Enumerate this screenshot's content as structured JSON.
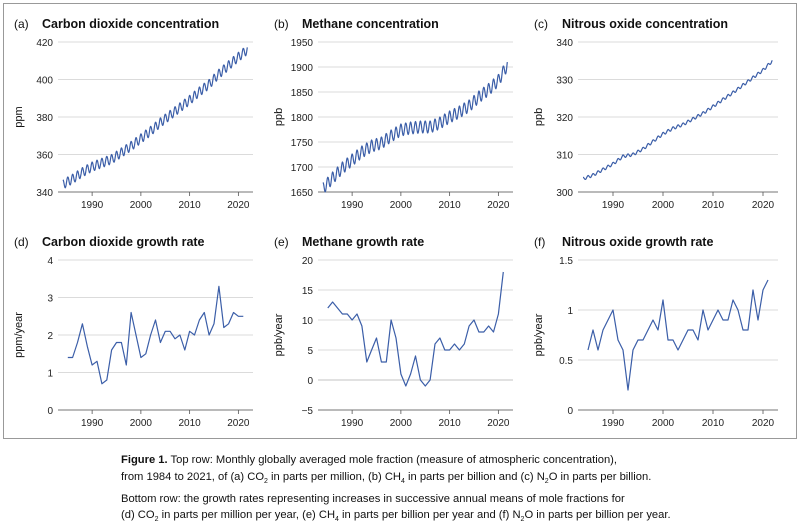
{
  "chart_data": [
    {
      "type": "line",
      "panel_tag": "(a)",
      "title": "Carbon dioxide concentration",
      "ylabel": "ppm",
      "xlim": [
        1983,
        2023
      ],
      "ylim": [
        340,
        420
      ],
      "yticks": [
        340,
        360,
        380,
        400,
        420
      ],
      "xticks": [
        1990,
        2000,
        2010,
        2020
      ],
      "color": "#3b5ea8",
      "x": [
        1984,
        1986,
        1988,
        1990,
        1992,
        1994,
        1996,
        1998,
        2000,
        2002,
        2004,
        2006,
        2008,
        2010,
        2012,
        2014,
        2016,
        2018,
        2020,
        2021.9
      ],
      "y": [
        344.0,
        347.0,
        350.5,
        353.5,
        355.5,
        357.5,
        361.0,
        364.5,
        368.5,
        372.5,
        377.0,
        381.0,
        385.0,
        389.0,
        393.5,
        397.5,
        403.0,
        407.5,
        412.0,
        416.0
      ],
      "seasonal_amplitude": 2.5
    },
    {
      "type": "line",
      "panel_tag": "(b)",
      "title": "Methane concentration",
      "ylabel": "ppb",
      "xlim": [
        1983,
        2023
      ],
      "ylim": [
        1650,
        1950
      ],
      "yticks": [
        1650,
        1700,
        1750,
        1800,
        1850,
        1900,
        1950
      ],
      "xticks": [
        1990,
        2000,
        2010,
        2020
      ],
      "color": "#3b5ea8",
      "x": [
        1984,
        1986,
        1988,
        1990,
        1992,
        1994,
        1996,
        1998,
        2000,
        2002,
        2004,
        2006,
        2008,
        2010,
        2012,
        2014,
        2016,
        2018,
        2020,
        2021.9
      ],
      "y": [
        1657,
        1678,
        1698,
        1714,
        1730,
        1742,
        1748,
        1762,
        1774,
        1778,
        1780,
        1780,
        1788,
        1800,
        1810,
        1822,
        1840,
        1855,
        1873,
        1905
      ],
      "seasonal_amplitude": 12
    },
    {
      "type": "line",
      "panel_tag": "(c)",
      "title": "Nitrous oxide concentration",
      "ylabel": "ppb",
      "xlim": [
        1983,
        2023
      ],
      "ylim": [
        300,
        340
      ],
      "yticks": [
        300,
        310,
        320,
        330,
        340
      ],
      "xticks": [
        1990,
        2000,
        2010,
        2020
      ],
      "color": "#3b5ea8",
      "x": [
        1984,
        1986,
        1988,
        1990,
        1992,
        1994,
        1996,
        1998,
        2000,
        2002,
        2004,
        2006,
        2008,
        2010,
        2012,
        2014,
        2016,
        2018,
        2020,
        2021.9
      ],
      "y": [
        303.5,
        304.5,
        306.0,
        307.5,
        309.5,
        310.0,
        311.5,
        313.5,
        315.5,
        317.0,
        318.0,
        319.5,
        321.0,
        322.8,
        324.7,
        326.5,
        328.5,
        330.5,
        332.5,
        335.0
      ],
      "seasonal_amplitude": 0.4
    },
    {
      "type": "line",
      "panel_tag": "(d)",
      "title": "Carbon dioxide growth rate",
      "ylabel": "ppm/year",
      "xlim": [
        1983,
        2023
      ],
      "ylim": [
        0,
        4
      ],
      "yticks": [
        0,
        1,
        2,
        3,
        4
      ],
      "xticks": [
        1990,
        2000,
        2010,
        2020
      ],
      "color": "#3b5ea8",
      "x": [
        1985,
        1986,
        1987,
        1988,
        1989,
        1990,
        1991,
        1992,
        1993,
        1994,
        1995,
        1996,
        1997,
        1998,
        1999,
        2000,
        2001,
        2002,
        2003,
        2004,
        2005,
        2006,
        2007,
        2008,
        2009,
        2010,
        2011,
        2012,
        2013,
        2014,
        2015,
        2016,
        2017,
        2018,
        2019,
        2020,
        2021
      ],
      "y": [
        1.4,
        1.4,
        1.8,
        2.3,
        1.7,
        1.2,
        1.3,
        0.7,
        0.8,
        1.6,
        1.8,
        1.8,
        1.2,
        2.6,
        2.0,
        1.4,
        1.5,
        2.0,
        2.4,
        1.8,
        2.1,
        2.1,
        1.9,
        2.0,
        1.6,
        2.1,
        2.0,
        2.4,
        2.6,
        2.0,
        2.3,
        3.3,
        2.2,
        2.3,
        2.6,
        2.5,
        2.5
      ]
    },
    {
      "type": "line",
      "panel_tag": "(e)",
      "title": "Methane growth rate",
      "ylabel": "ppb/year",
      "xlim": [
        1983,
        2023
      ],
      "ylim": [
        -5,
        20
      ],
      "yticks": [
        -5,
        0,
        5,
        10,
        15,
        20
      ],
      "xticks": [
        1990,
        2000,
        2010,
        2020
      ],
      "color": "#3b5ea8",
      "x": [
        1985,
        1986,
        1987,
        1988,
        1989,
        1990,
        1991,
        1992,
        1993,
        1994,
        1995,
        1996,
        1997,
        1998,
        1999,
        2000,
        2001,
        2002,
        2003,
        2004,
        2005,
        2006,
        2007,
        2008,
        2009,
        2010,
        2011,
        2012,
        2013,
        2014,
        2015,
        2016,
        2017,
        2018,
        2019,
        2020,
        2021
      ],
      "y": [
        12,
        13,
        12,
        11,
        11,
        10,
        11,
        9,
        3,
        5,
        7,
        3,
        3,
        10,
        7,
        1,
        -1,
        1,
        4,
        0,
        -1,
        0,
        6,
        7,
        5,
        5,
        6,
        5,
        6,
        9,
        10,
        8,
        8,
        9,
        8,
        11,
        18
      ]
    },
    {
      "type": "line",
      "panel_tag": "(f)",
      "title": "Nitrous oxide growth rate",
      "ylabel": "ppb/year",
      "xlim": [
        1983,
        2023
      ],
      "ylim": [
        0.0,
        1.5
      ],
      "yticks": [
        0.0,
        0.5,
        1.0,
        1.5
      ],
      "xticks": [
        1990,
        2000,
        2010,
        2020
      ],
      "color": "#3b5ea8",
      "x": [
        1985,
        1986,
        1987,
        1988,
        1989,
        1990,
        1991,
        1992,
        1993,
        1994,
        1995,
        1996,
        1997,
        1998,
        1999,
        2000,
        2001,
        2002,
        2003,
        2004,
        2005,
        2006,
        2007,
        2008,
        2009,
        2010,
        2011,
        2012,
        2013,
        2014,
        2015,
        2016,
        2017,
        2018,
        2019,
        2020,
        2021
      ],
      "y": [
        0.6,
        0.8,
        0.6,
        0.8,
        0.9,
        1.0,
        0.7,
        0.6,
        0.2,
        0.6,
        0.7,
        0.7,
        0.8,
        0.9,
        0.8,
        1.1,
        0.7,
        0.7,
        0.6,
        0.7,
        0.8,
        0.8,
        0.7,
        1.0,
        0.8,
        0.9,
        1.0,
        0.9,
        0.9,
        1.1,
        1.0,
        0.8,
        0.8,
        1.2,
        0.9,
        1.2,
        1.3
      ]
    }
  ],
  "caption": {
    "label": "Figure 1.",
    "line1": "Top row: Monthly globally averaged mole fraction (measure of atmospheric concentration),",
    "line2_a": "from 1984 to 2021, of (a) CO",
    "line2_a_sub": "2",
    "line2_b": " in parts per million, (b) CH",
    "line2_b_sub": "4",
    "line2_c": " in parts per billion and (c) N",
    "line2_c_sub": "2",
    "line2_d": "O in parts per billion.",
    "line3": "Bottom row: the growth rates representing increases in successive annual means of mole fractions for",
    "line4_a": "(d) CO",
    "line4_a_sub": "2",
    "line4_b": " in parts per million per year, (e) CH",
    "line4_b_sub": "4",
    "line4_c": " in parts per billion per year and (f) N",
    "line4_c_sub": "2",
    "line4_d": "O in parts per billion per year."
  }
}
